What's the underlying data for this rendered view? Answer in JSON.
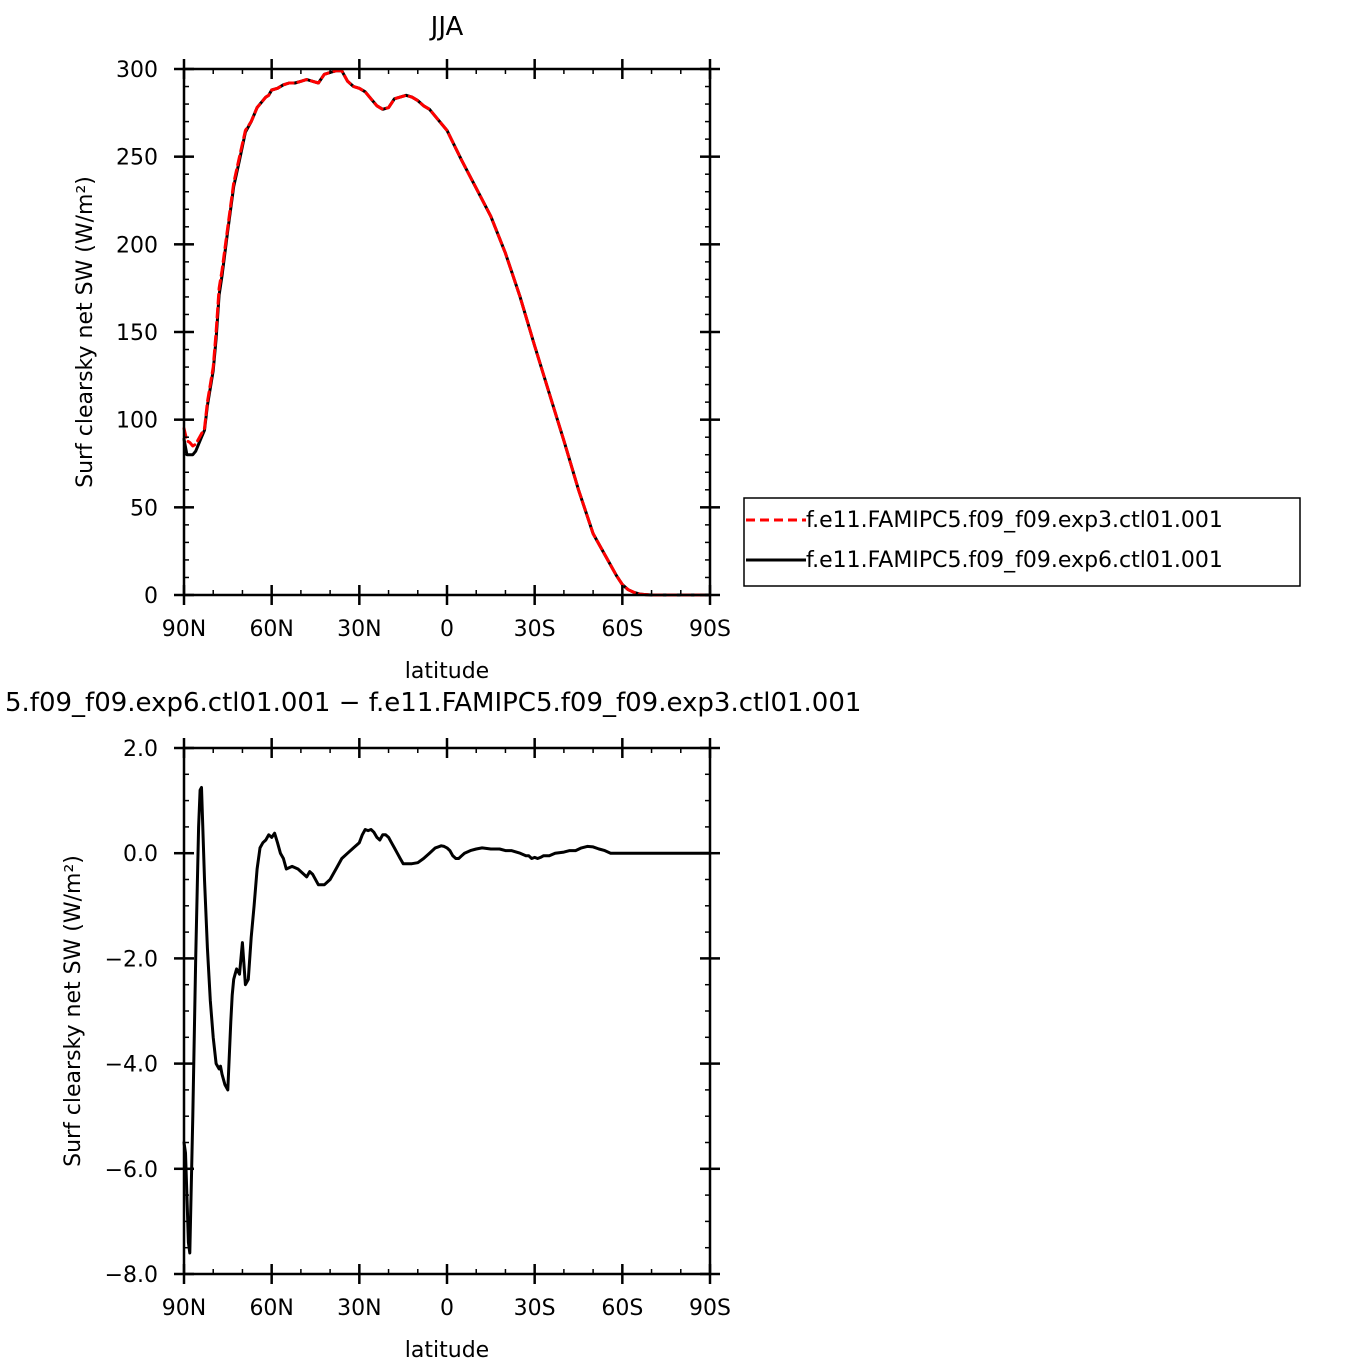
{
  "chart_data": [
    {
      "type": "line",
      "title": "JJA",
      "xlabel": "latitude",
      "ylabel": "Surf clearsky net SW (W/m²)",
      "xlim": [
        90,
        -90
      ],
      "ylim": [
        0,
        300
      ],
      "x_ticks": [
        90,
        60,
        30,
        0,
        -30,
        -60,
        -90
      ],
      "x_tick_labels": [
        "90N",
        "60N",
        "30N",
        "0",
        "30S",
        "60S",
        "90S"
      ],
      "y_ticks": [
        0,
        50,
        100,
        150,
        200,
        250,
        300
      ],
      "y_tick_labels": [
        "0",
        "50",
        "100",
        "150",
        "200",
        "250",
        "300"
      ],
      "legend": "right",
      "series": [
        {
          "name": "f.e11.FAMIPC5.f09_f09.exp3.ctl01.001",
          "color": "#ff0000",
          "dash": "dashed",
          "x": [
            90,
            89,
            88,
            87,
            86,
            85,
            84,
            83,
            82,
            81,
            80,
            79,
            78,
            77,
            75,
            73,
            71,
            69,
            67,
            65,
            63,
            62,
            61,
            60,
            58,
            56,
            54,
            52,
            50,
            48,
            46,
            44,
            42,
            40,
            38,
            36,
            34,
            32,
            30,
            28,
            26,
            24,
            22,
            20,
            18,
            16,
            14,
            12,
            10,
            8,
            6,
            4,
            2,
            0,
            -5,
            -10,
            -15,
            -20,
            -25,
            -30,
            -35,
            -40,
            -45,
            -50,
            -55,
            -58,
            -60,
            -62,
            -64,
            -66,
            -68,
            -70,
            -75,
            -80,
            -85,
            -90
          ],
          "y": [
            95,
            88,
            87,
            85,
            86,
            89,
            92,
            95,
            110,
            120,
            130,
            150,
            175,
            185,
            210,
            235,
            250,
            265,
            270,
            278,
            282,
            284,
            285,
            288,
            289,
            291,
            292,
            292,
            293,
            294,
            293,
            292,
            297,
            298,
            299,
            299,
            293,
            290,
            289,
            287,
            283,
            279,
            277,
            278,
            283,
            284,
            285,
            284,
            282,
            279,
            277,
            273,
            269,
            265,
            248,
            232,
            216,
            195,
            170,
            142,
            115,
            88,
            60,
            35,
            20,
            11,
            6,
            3,
            1.5,
            0.5,
            0.2,
            0,
            0,
            0,
            0,
            0
          ]
        },
        {
          "name": "f.e11.FAMIPC5.f09_f09.exp6.ctl01.001",
          "color": "#000000",
          "dash": "solid",
          "x": [
            90,
            89,
            88,
            87,
            86,
            85,
            84,
            83,
            82,
            81,
            80,
            79,
            78,
            77,
            75,
            73,
            71,
            69,
            67,
            65,
            63,
            62,
            61,
            60,
            58,
            56,
            54,
            52,
            50,
            48,
            46,
            44,
            42,
            40,
            38,
            36,
            34,
            32,
            30,
            28,
            26,
            24,
            22,
            20,
            18,
            16,
            14,
            12,
            10,
            8,
            6,
            4,
            2,
            0,
            -5,
            -10,
            -15,
            -20,
            -25,
            -30,
            -35,
            -40,
            -45,
            -50,
            -55,
            -58,
            -60,
            -62,
            -64,
            -66,
            -68,
            -70,
            -75,
            -80,
            -85,
            -90
          ],
          "y": [
            89,
            80,
            80,
            80,
            82,
            86,
            90,
            94,
            108,
            118,
            128,
            146,
            171,
            182,
            208,
            233,
            248,
            264,
            270,
            278,
            282,
            284,
            285,
            288,
            289,
            291,
            292,
            292,
            293,
            294,
            293,
            292,
            297,
            298,
            299,
            299,
            293,
            290,
            289,
            287,
            283,
            279,
            277,
            278,
            283,
            284,
            285,
            284,
            282,
            279,
            277,
            273,
            269,
            265,
            248,
            232,
            216,
            195,
            170,
            142,
            115,
            88,
            60,
            35,
            20,
            11,
            6,
            3,
            1.5,
            0.5,
            0.2,
            0,
            0,
            0,
            0,
            0
          ]
        }
      ]
    },
    {
      "type": "line",
      "title": "5.f09_f09.exp6.ctl01.001 − f.e11.FAMIPC5.f09_f09.exp3.ctl01.001",
      "xlabel": "latitude",
      "ylabel": "Surf clearsky net SW (W/m²)",
      "xlim": [
        90,
        -90
      ],
      "ylim": [
        -8,
        2
      ],
      "x_ticks": [
        90,
        60,
        30,
        0,
        -30,
        -60,
        -90
      ],
      "x_tick_labels": [
        "90N",
        "60N",
        "30N",
        "0",
        "30S",
        "60S",
        "90S"
      ],
      "y_ticks": [
        -8,
        -6,
        -4,
        -2,
        0,
        2
      ],
      "y_tick_labels": [
        "−8.0",
        "−6.0",
        "−4.0",
        "−2.0",
        "0.0",
        "2.0"
      ],
      "series": [
        {
          "color": "#000000",
          "dash": "solid",
          "x": [
            90,
            89.5,
            89,
            88.5,
            88,
            87,
            86,
            85,
            84.5,
            84,
            83,
            82,
            81,
            80,
            79,
            78,
            77.5,
            77,
            76,
            75,
            74,
            73.5,
            73,
            72.5,
            72,
            71,
            70,
            69,
            68,
            67,
            66,
            65,
            64,
            63,
            62,
            61,
            60,
            59,
            58,
            57,
            56,
            55,
            53,
            51,
            49,
            48,
            47,
            46,
            44,
            42,
            40,
            38,
            36,
            34,
            32,
            30,
            29,
            28,
            27,
            26,
            25,
            24,
            23,
            22,
            21,
            20,
            19,
            18,
            17,
            16,
            15,
            14,
            13,
            12,
            10,
            8,
            6,
            4,
            3,
            2,
            1,
            0,
            -1,
            -2,
            -3,
            -4,
            -5,
            -6,
            -8,
            -10,
            -12,
            -15,
            -18,
            -20,
            -22,
            -25,
            -27,
            -28,
            -29,
            -30,
            -31,
            -32,
            -33,
            -35,
            -37,
            -40,
            -42,
            -44,
            -46,
            -48,
            -50,
            -52,
            -54,
            -56,
            -60,
            -65,
            -70,
            -75,
            -80,
            -85,
            -90
          ],
          "y": [
            -5.5,
            -5.7,
            -6.5,
            -7.4,
            -7.6,
            -5.0,
            -2.0,
            0.5,
            1.2,
            1.25,
            -0.5,
            -1.8,
            -2.8,
            -3.5,
            -4.0,
            -4.1,
            -4.05,
            -4.2,
            -4.4,
            -4.5,
            -3.2,
            -2.7,
            -2.4,
            -2.3,
            -2.2,
            -2.3,
            -1.7,
            -2.5,
            -2.4,
            -1.6,
            -1.0,
            -0.3,
            0.1,
            0.2,
            0.25,
            0.35,
            0.3,
            0.38,
            0.2,
            0.0,
            -0.1,
            -0.3,
            -0.25,
            -0.3,
            -0.4,
            -0.45,
            -0.35,
            -0.4,
            -0.6,
            -0.6,
            -0.5,
            -0.3,
            -0.1,
            0.0,
            0.1,
            0.2,
            0.35,
            0.45,
            0.43,
            0.45,
            0.4,
            0.3,
            0.25,
            0.35,
            0.35,
            0.3,
            0.2,
            0.1,
            0.0,
            -0.1,
            -0.2,
            -0.2,
            -0.2,
            -0.2,
            -0.18,
            -0.1,
            0.0,
            0.1,
            0.12,
            0.14,
            0.13,
            0.1,
            0.05,
            -0.05,
            -0.1,
            -0.1,
            -0.05,
            0.0,
            0.05,
            0.08,
            0.1,
            0.08,
            0.08,
            0.05,
            0.05,
            0.0,
            -0.05,
            -0.05,
            -0.1,
            -0.08,
            -0.1,
            -0.08,
            -0.05,
            -0.05,
            0.0,
            0.02,
            0.05,
            0.05,
            0.1,
            0.13,
            0.12,
            0.08,
            0.05,
            0.0,
            0.0,
            0.0,
            0.0,
            0.0,
            0.0,
            0.0,
            0.0
          ]
        }
      ]
    }
  ]
}
